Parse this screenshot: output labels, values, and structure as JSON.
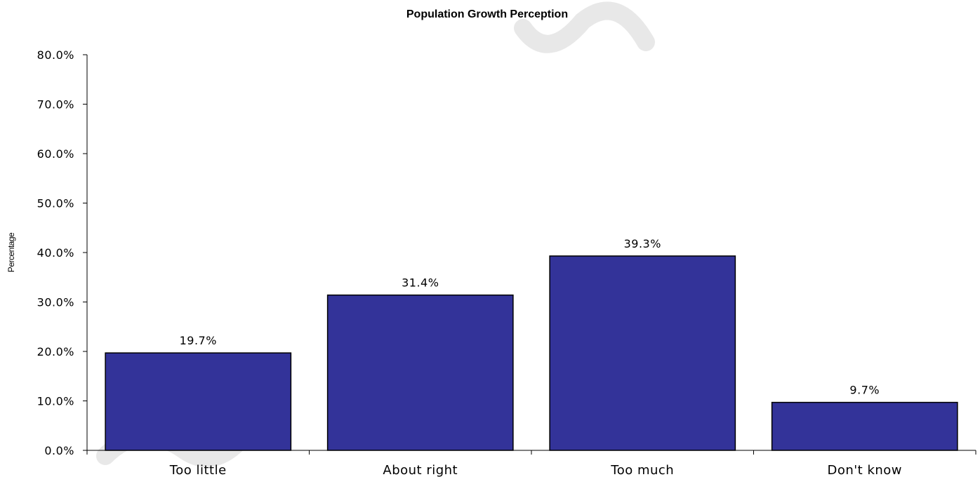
{
  "chart_data": {
    "type": "bar",
    "title": "Population Growth Perception",
    "xlabel": "",
    "ylabel": "Percentage",
    "categories": [
      "Too little",
      "About right",
      "Too much",
      "Don't know"
    ],
    "values": [
      19.7,
      31.4,
      39.3,
      9.7
    ],
    "data_labels": [
      "19.7%",
      "31.4%",
      "39.3%",
      "9.7%"
    ],
    "ylim": [
      0,
      80
    ],
    "yticks": [
      0,
      10,
      20,
      30,
      40,
      50,
      60,
      70,
      80
    ],
    "ytick_labels": [
      "0.0%",
      "10.0%",
      "20.0%",
      "30.0%",
      "40.0%",
      "50.0%",
      "60.0%",
      "70.0%",
      "80.0%"
    ],
    "grid": false,
    "legend": "none",
    "bar_color": "#333399"
  }
}
